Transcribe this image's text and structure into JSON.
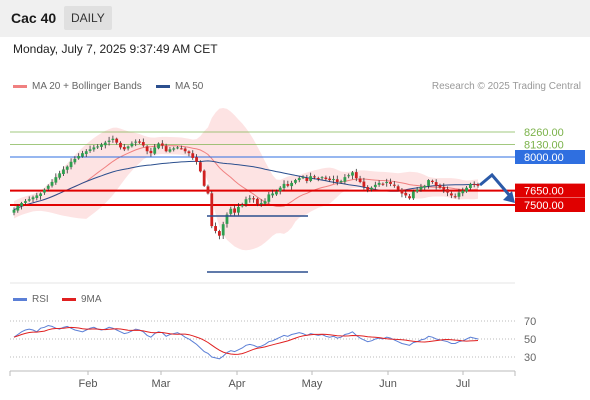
{
  "header": {
    "title": "Cac 40",
    "period": "DAILY"
  },
  "timestamp": "Monday, July 7, 2025 9:37:49 AM CET",
  "legend": {
    "ma20_bb": {
      "label": "MA 20 + Bollinger Bands",
      "color": "#f08080"
    },
    "ma50": {
      "label": "MA 50",
      "color": "#2b4f8e"
    }
  },
  "credit": "Research © 2025 Trading Central",
  "rsi_legend": {
    "rsi": {
      "label": "RSI",
      "color": "#5b7fd6"
    },
    "ma9": {
      "label": "9MA",
      "color": "#e02020"
    }
  },
  "levels": {
    "r2": {
      "value": "8260.00",
      "color": "#7bb24a"
    },
    "r1": {
      "value": "8130.00",
      "color": "#7bb24a"
    },
    "pivot": {
      "value": "8000.00",
      "color": "#2f6fe0"
    },
    "s1": {
      "value": "7650.00",
      "color": "#e00000"
    },
    "s2": {
      "value": "7500.00",
      "color": "#e00000"
    }
  },
  "chart_data": [
    {
      "type": "candlestick",
      "series_name": "Cac 40",
      "x_axis_labels": [
        "Feb",
        "Mar",
        "Apr",
        "May",
        "Jun",
        "Jul"
      ],
      "scale": "price",
      "close_approx": [
        7450,
        7490,
        7520,
        7540,
        7560,
        7580,
        7600,
        7620,
        7660,
        7700,
        7740,
        7790,
        7830,
        7870,
        7900,
        7950,
        7980,
        8010,
        8040,
        8060,
        8080,
        8100,
        8110,
        8130,
        8150,
        8170,
        8190,
        8150,
        8100,
        8080,
        8110,
        8140,
        8160,
        8150,
        8120,
        8060,
        8040,
        8100,
        8140,
        8120,
        8060,
        8080,
        8090,
        8100,
        8090,
        8060,
        8040,
        7990,
        7950,
        7850,
        7700,
        7620,
        7280,
        7230,
        7180,
        7300,
        7400,
        7460,
        7420,
        7480,
        7500,
        7560,
        7570,
        7560,
        7510,
        7520,
        7540,
        7610,
        7620,
        7640,
        7680,
        7720,
        7700,
        7730,
        7760,
        7780,
        7790,
        7750,
        7800,
        7790,
        7780,
        7790,
        7770,
        7760,
        7770,
        7740,
        7750,
        7790,
        7810,
        7840,
        7780,
        7740,
        7690,
        7660,
        7680,
        7710,
        7730,
        7720,
        7740,
        7720,
        7700,
        7660,
        7620,
        7600,
        7570,
        7640,
        7660,
        7690,
        7700,
        7760,
        7740,
        7700,
        7680,
        7660,
        7630,
        7600,
        7590,
        7630,
        7650,
        7680,
        7720,
        7710,
        7700
      ],
      "ma20_bb": "overlay",
      "ma50": "overlay",
      "forecast": "rebound to ~7800 then decline toward 7500"
    },
    {
      "type": "line",
      "title": "RSI",
      "series": [
        {
          "name": "RSI"
        },
        {
          "name": "9MA"
        }
      ],
      "y_ticks": [
        "70",
        "50",
        "30"
      ],
      "ylim": [
        20,
        80
      ],
      "rsi_approx": [
        52,
        55,
        58,
        60,
        61,
        60,
        58,
        62,
        63,
        65,
        64,
        62,
        61,
        63,
        64,
        62,
        60,
        59,
        58,
        60,
        62,
        63,
        61,
        60,
        61,
        63,
        62,
        60,
        58,
        56,
        57,
        59,
        61,
        60,
        58,
        54,
        52,
        56,
        58,
        57,
        53,
        55,
        56,
        57,
        55,
        52,
        50,
        47,
        44,
        40,
        36,
        34,
        30,
        29,
        28,
        31,
        35,
        37,
        36,
        38,
        40,
        43,
        44,
        43,
        41,
        42,
        44,
        47,
        48,
        50,
        52,
        54,
        53,
        55,
        56,
        57,
        56,
        54,
        56,
        55,
        54,
        55,
        53,
        52,
        53,
        51,
        52,
        55,
        56,
        58,
        54,
        51,
        49,
        47,
        48,
        50,
        51,
        50,
        52,
        51,
        49,
        47,
        45,
        44,
        43,
        46,
        47,
        49,
        50,
        53,
        52,
        50,
        49,
        48,
        47,
        45,
        45,
        47,
        48,
        50,
        52,
        51,
        50
      ]
    }
  ]
}
